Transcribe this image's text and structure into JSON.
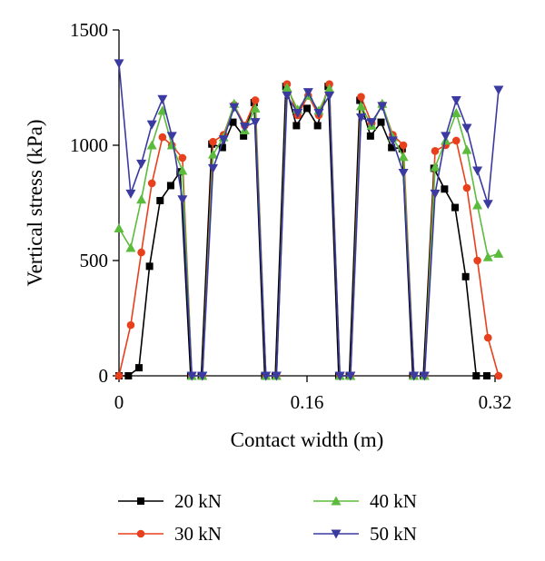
{
  "chart_data": {
    "type": "line",
    "xlabel": "Contact width (m)",
    "ylabel": "Vertical stress (kPa)",
    "xlim": [
      0,
      0.32
    ],
    "ylim": [
      0,
      1500
    ],
    "xticks": [
      0,
      0.16,
      0.32
    ],
    "xtick_labels": [
      "0",
      "0.16",
      "0.32"
    ],
    "yticks": [
      0,
      500,
      1000,
      1500
    ],
    "ytick_labels": [
      "0",
      "500",
      "1000",
      "1500"
    ],
    "grid": false,
    "legend_position": "bottom",
    "series": [
      {
        "name": "20 kN",
        "color": "#000000",
        "marker": "square",
        "points": [
          [
            0,
            0
          ],
          [
            0.008,
            0
          ],
          [
            0.017,
            35
          ],
          [
            0.026,
            475
          ],
          [
            0.035,
            760
          ],
          [
            0.044,
            825
          ],
          [
            0.052,
            885
          ],
          [
            0.061,
            0
          ],
          [
            0.07,
            0
          ],
          [
            0.079,
            1005
          ],
          [
            0.088,
            990
          ],
          [
            0.097,
            1100
          ],
          [
            0.106,
            1040
          ],
          [
            0.115,
            1185
          ],
          [
            0.124,
            0
          ],
          [
            0.133,
            0
          ],
          [
            0.142,
            1255
          ],
          [
            0.151,
            1085
          ],
          [
            0.16,
            1160
          ],
          [
            0.169,
            1085
          ],
          [
            0.178,
            1255
          ],
          [
            0.187,
            0
          ],
          [
            0.196,
            0
          ],
          [
            0.205,
            1195
          ],
          [
            0.214,
            1040
          ],
          [
            0.223,
            1100
          ],
          [
            0.232,
            990
          ],
          [
            0.241,
            985
          ],
          [
            0.25,
            0
          ],
          [
            0.259,
            0
          ],
          [
            0.268,
            900
          ],
          [
            0.277,
            810
          ],
          [
            0.286,
            730
          ],
          [
            0.295,
            430
          ],
          [
            0.304,
            0
          ],
          [
            0.313,
            0
          ]
        ]
      },
      {
        "name": "30 kN",
        "color": "#e8401c",
        "marker": "circle",
        "points": [
          [
            0,
            0
          ],
          [
            0.01,
            220
          ],
          [
            0.019,
            535
          ],
          [
            0.028,
            835
          ],
          [
            0.037,
            1035
          ],
          [
            0.045,
            1000
          ],
          [
            0.054,
            945
          ],
          [
            0.062,
            0
          ],
          [
            0.071,
            0
          ],
          [
            0.08,
            1015
          ],
          [
            0.089,
            1045
          ],
          [
            0.098,
            1175
          ],
          [
            0.107,
            1085
          ],
          [
            0.116,
            1195
          ],
          [
            0.125,
            0
          ],
          [
            0.134,
            0
          ],
          [
            0.143,
            1265
          ],
          [
            0.152,
            1130
          ],
          [
            0.161,
            1215
          ],
          [
            0.17,
            1130
          ],
          [
            0.179,
            1265
          ],
          [
            0.188,
            0
          ],
          [
            0.197,
            0
          ],
          [
            0.206,
            1210
          ],
          [
            0.215,
            1095
          ],
          [
            0.224,
            1175
          ],
          [
            0.233,
            1045
          ],
          [
            0.242,
            1000
          ],
          [
            0.251,
            0
          ],
          [
            0.26,
            0
          ],
          [
            0.269,
            975
          ],
          [
            0.278,
            1000
          ],
          [
            0.287,
            1020
          ],
          [
            0.296,
            815
          ],
          [
            0.305,
            500
          ],
          [
            0.314,
            165
          ],
          [
            0.323,
            0
          ]
        ]
      },
      {
        "name": "40 kN",
        "color": "#5cbb3c",
        "marker": "triangle-up",
        "points": [
          [
            0,
            640
          ],
          [
            0.01,
            555
          ],
          [
            0.019,
            765
          ],
          [
            0.028,
            1000
          ],
          [
            0.037,
            1150
          ],
          [
            0.045,
            1000
          ],
          [
            0.054,
            890
          ],
          [
            0.062,
            0
          ],
          [
            0.071,
            0
          ],
          [
            0.08,
            960
          ],
          [
            0.089,
            1035
          ],
          [
            0.098,
            1180
          ],
          [
            0.107,
            1065
          ],
          [
            0.116,
            1160
          ],
          [
            0.125,
            0
          ],
          [
            0.134,
            0
          ],
          [
            0.143,
            1250
          ],
          [
            0.152,
            1155
          ],
          [
            0.161,
            1215
          ],
          [
            0.17,
            1150
          ],
          [
            0.179,
            1245
          ],
          [
            0.188,
            0
          ],
          [
            0.197,
            0
          ],
          [
            0.206,
            1170
          ],
          [
            0.215,
            1085
          ],
          [
            0.224,
            1180
          ],
          [
            0.233,
            1035
          ],
          [
            0.242,
            950
          ],
          [
            0.251,
            0
          ],
          [
            0.26,
            0
          ],
          [
            0.269,
            905
          ],
          [
            0.278,
            1020
          ],
          [
            0.287,
            1140
          ],
          [
            0.296,
            980
          ],
          [
            0.305,
            740
          ],
          [
            0.314,
            515
          ],
          [
            0.323,
            530
          ]
        ]
      },
      {
        "name": "50 kN",
        "color": "#3a3aa0",
        "marker": "triangle-down",
        "points": [
          [
            0,
            1355
          ],
          [
            0.01,
            790
          ],
          [
            0.019,
            920
          ],
          [
            0.028,
            1090
          ],
          [
            0.037,
            1200
          ],
          [
            0.045,
            1040
          ],
          [
            0.054,
            765
          ],
          [
            0.062,
            0
          ],
          [
            0.071,
            0
          ],
          [
            0.08,
            900
          ],
          [
            0.089,
            1025
          ],
          [
            0.098,
            1165
          ],
          [
            0.107,
            1080
          ],
          [
            0.116,
            1100
          ],
          [
            0.125,
            0
          ],
          [
            0.134,
            0
          ],
          [
            0.143,
            1215
          ],
          [
            0.152,
            1140
          ],
          [
            0.161,
            1230
          ],
          [
            0.17,
            1140
          ],
          [
            0.179,
            1215
          ],
          [
            0.188,
            0
          ],
          [
            0.197,
            0
          ],
          [
            0.206,
            1120
          ],
          [
            0.215,
            1100
          ],
          [
            0.224,
            1170
          ],
          [
            0.233,
            1020
          ],
          [
            0.242,
            880
          ],
          [
            0.251,
            0
          ],
          [
            0.26,
            0
          ],
          [
            0.269,
            790
          ],
          [
            0.278,
            1040
          ],
          [
            0.287,
            1195
          ],
          [
            0.296,
            1075
          ],
          [
            0.305,
            890
          ],
          [
            0.314,
            745
          ],
          [
            0.323,
            1240
          ]
        ]
      }
    ]
  }
}
